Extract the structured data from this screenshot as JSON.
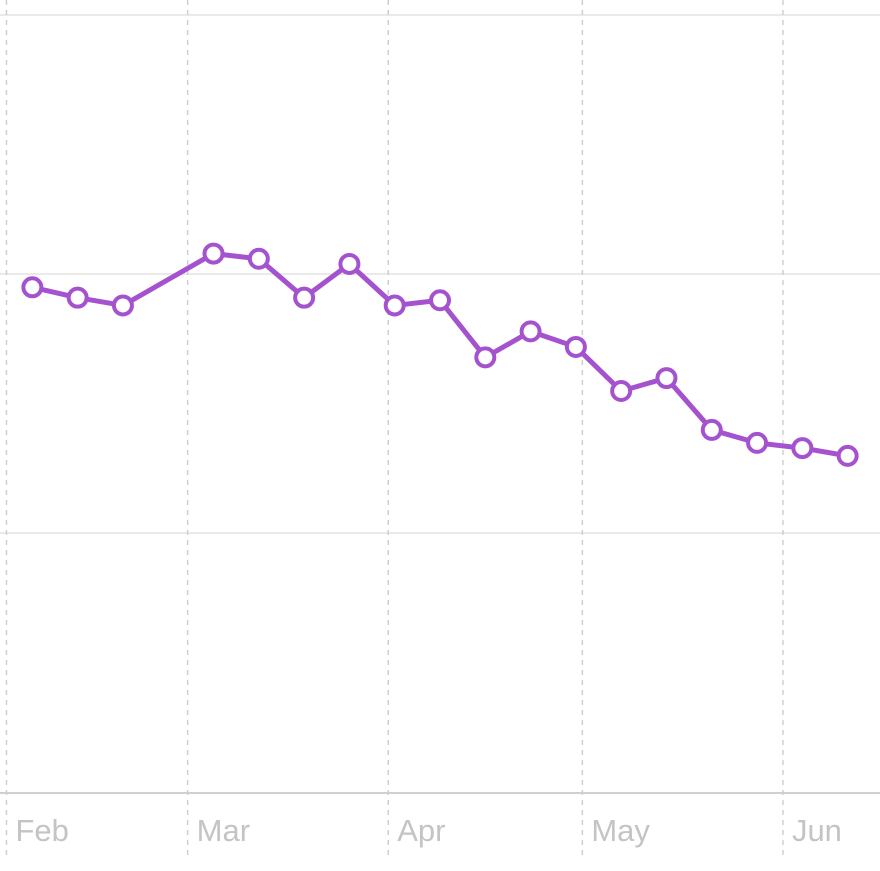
{
  "chart_data": {
    "type": "line",
    "x": [
      4,
      11,
      18,
      32,
      39,
      46,
      53,
      60,
      67,
      74,
      81,
      88,
      95,
      102,
      109,
      116,
      123,
      130
    ],
    "series": [
      {
        "color": "#a552cf",
        "values": [
          1.95,
          1.91,
          1.88,
          2.08,
          2.06,
          1.91,
          2.04,
          1.88,
          1.9,
          1.68,
          1.78,
          1.72,
          1.55,
          1.6,
          1.4,
          1.35,
          1.33,
          1.3
        ]
      }
    ],
    "xlim": [
      -1,
      135
    ],
    "xticks": [
      {
        "value": 0,
        "label": "Feb"
      },
      {
        "value": 28,
        "label": "Mar"
      },
      {
        "value": 59,
        "label": "Apr"
      },
      {
        "value": 89,
        "label": "May"
      },
      {
        "value": 120,
        "label": "Jun"
      }
    ],
    "ylim": [
      0,
      3
    ],
    "grid": true
  }
}
